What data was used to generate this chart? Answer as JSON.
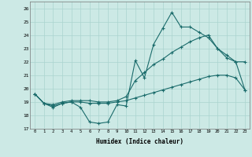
{
  "xlabel": "Humidex (Indice chaleur)",
  "xlim": [
    -0.5,
    23.5
  ],
  "ylim": [
    17,
    26.5
  ],
  "yticks": [
    17,
    18,
    19,
    20,
    21,
    22,
    23,
    24,
    25,
    26
  ],
  "xticks": [
    0,
    1,
    2,
    3,
    4,
    5,
    6,
    7,
    8,
    9,
    10,
    11,
    12,
    13,
    14,
    15,
    16,
    17,
    18,
    19,
    20,
    21,
    22,
    23
  ],
  "bg_color": "#cce9e5",
  "grid_color": "#aad4cf",
  "line_color": "#1a6b6b",
  "line1": {
    "x": [
      0,
      1,
      2,
      3,
      4,
      5,
      6,
      7,
      8,
      9,
      10,
      11,
      12,
      13,
      14,
      15,
      16,
      17,
      18,
      19,
      20,
      21,
      22,
      23
    ],
    "y": [
      19.6,
      18.9,
      18.6,
      18.9,
      19.0,
      18.6,
      17.5,
      17.4,
      17.5,
      18.8,
      18.7,
      22.1,
      20.8,
      23.3,
      24.5,
      25.7,
      24.6,
      24.6,
      24.2,
      23.8,
      23.0,
      22.5,
      22.0,
      19.9
    ]
  },
  "line2": {
    "x": [
      0,
      1,
      2,
      3,
      4,
      5,
      6,
      7,
      8,
      9,
      10,
      11,
      12,
      13,
      14,
      15,
      16,
      17,
      18,
      19,
      20,
      21,
      22,
      23
    ],
    "y": [
      19.6,
      18.9,
      18.8,
      19.0,
      19.1,
      19.1,
      19.1,
      19.0,
      19.0,
      19.1,
      19.4,
      20.6,
      21.2,
      21.8,
      22.2,
      22.7,
      23.1,
      23.5,
      23.8,
      24.0,
      23.0,
      22.3,
      22.0,
      22.0
    ]
  },
  "line3": {
    "x": [
      0,
      1,
      2,
      3,
      4,
      5,
      6,
      7,
      8,
      9,
      10,
      11,
      12,
      13,
      14,
      15,
      16,
      17,
      18,
      19,
      20,
      21,
      22,
      23
    ],
    "y": [
      19.6,
      18.9,
      18.7,
      18.9,
      19.0,
      19.0,
      18.9,
      18.9,
      18.9,
      19.0,
      19.1,
      19.3,
      19.5,
      19.7,
      19.9,
      20.1,
      20.3,
      20.5,
      20.7,
      20.9,
      21.0,
      21.0,
      20.8,
      19.9
    ]
  }
}
